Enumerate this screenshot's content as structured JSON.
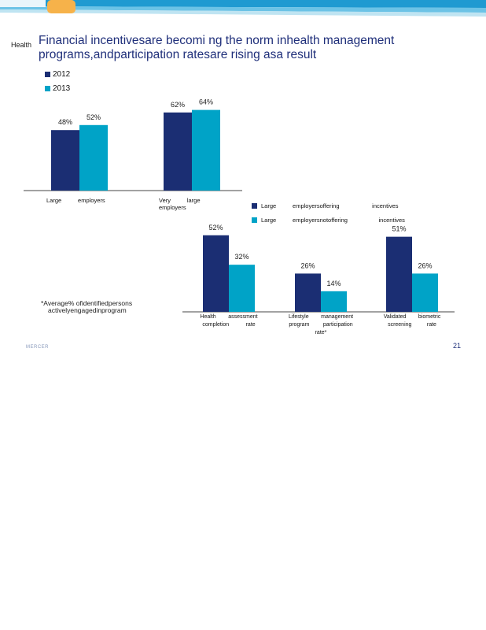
{
  "header": {
    "small_label": "Health",
    "title": "Financial incentivesare becomi ng the norm inhealth management programs,andparticipation ratesare rising asa result"
  },
  "colors": {
    "dark_blue": "#1b2e73",
    "teal": "#00a3c7",
    "banner_blue": "#3aa7d6",
    "banner_light": "#bfe4f2",
    "accent_orange": "#f6b24a"
  },
  "chart_data": [
    {
      "type": "bar",
      "categories": [
        "Large employers",
        "Very large employers"
      ],
      "series": [
        {
          "name": "2012",
          "values": [
            48,
            62
          ],
          "labels": [
            "48%",
            "62%"
          ]
        },
        {
          "name": "2013",
          "values": [
            52,
            64
          ],
          "labels": [
            "52%",
            "64%"
          ]
        }
      ],
      "legend": "top-left",
      "grid": false
    },
    {
      "type": "bar",
      "categories": [
        "Health assessment completion rate",
        "Lifestyle management program participation rate*",
        "Validated biometric screening rate"
      ],
      "category_lines": [
        [
          "Health        assessment",
          "completion           rate"
        ],
        [
          "Lifestyle        management",
          "program         participation",
          "rate*"
        ],
        [
          "Validated        biometric",
          "screening          rate"
        ]
      ],
      "series": [
        {
          "name": "Large employersoffering incentives",
          "values": [
            52,
            26,
            51
          ],
          "labels": [
            "52%",
            "26%",
            "51%"
          ]
        },
        {
          "name": "Large employersnotoffering incentives",
          "values": [
            32,
            14,
            26
          ],
          "labels": [
            "32%",
            "14%",
            "26%"
          ]
        }
      ],
      "legend": "top",
      "grid": false
    }
  ],
  "chart1_ticks": [
    [
      "Large          employers"
    ],
    [
      "Very          large",
      "employers"
    ]
  ],
  "chart2_legend": [
    {
      "label": "Large          employersoffering                    incentives"
    },
    {
      "label": "Large          employersnotoffering                   incentives"
    }
  ],
  "footnote": {
    "line1": "*Average% ofidentifiedpersons",
    "line2": "activelyengagedinprogram"
  },
  "footer": {
    "brand": "MERCER",
    "page": "21"
  }
}
